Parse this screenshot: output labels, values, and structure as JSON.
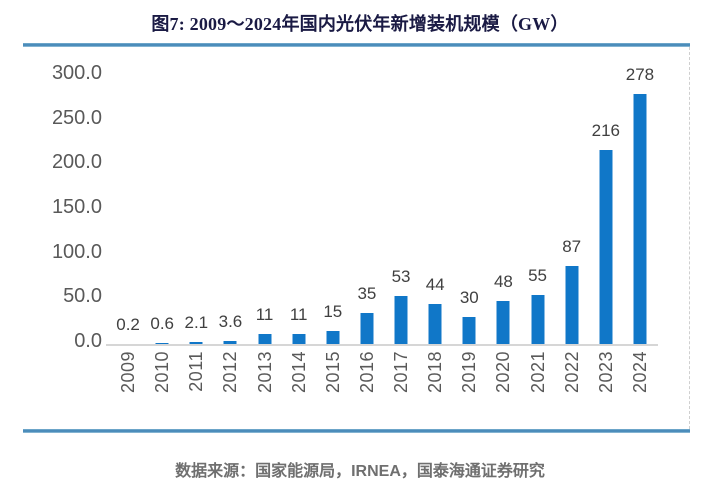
{
  "page": {
    "title": "图7: 2009～2024年国内光伏年新增装机规模（GW）",
    "source_note": "数据来源：国家能源局，IRNEA，国泰海通证券研究"
  },
  "colors": {
    "bar": "#1077c8",
    "separator_line": "#4c8fbd",
    "axis_line": "#d6d6d6",
    "tick_label": "#595959",
    "value_label": "#404040",
    "title_text": "#1a1a44",
    "source_text": "#6f6f6f"
  },
  "chart_data": {
    "type": "bar",
    "title": "图7: 2009～2024年国内光伏年新增装机规模（GW）",
    "unit": "GW",
    "categories": [
      "2009",
      "2010",
      "2011",
      "2012",
      "2013",
      "2014",
      "2015",
      "2016",
      "2017",
      "2018",
      "2019",
      "2020",
      "2021",
      "2022",
      "2023",
      "2024"
    ],
    "values": [
      0.2,
      0.6,
      2.1,
      3.6,
      11,
      11,
      15,
      35,
      53,
      44,
      30,
      48,
      55,
      87,
      216,
      278
    ],
    "value_labels": [
      "0.2",
      "0.6",
      "2.1",
      "3.6",
      "11",
      "11",
      "15",
      "35",
      "53",
      "44",
      "30",
      "48",
      "55",
      "87",
      "216",
      "278"
    ],
    "xlabel": "",
    "ylabel": "",
    "ylim": [
      0,
      300
    ],
    "ytick_labels": [
      "300.0",
      "250.0",
      "200.0",
      "150.0",
      "100.0",
      "50.0",
      "0.0"
    ],
    "ytick_values": [
      300,
      250,
      200,
      150,
      100,
      50,
      0
    ],
    "grid": false,
    "legend": false,
    "bar_label_position": "above",
    "x_label_rotation": -90
  }
}
